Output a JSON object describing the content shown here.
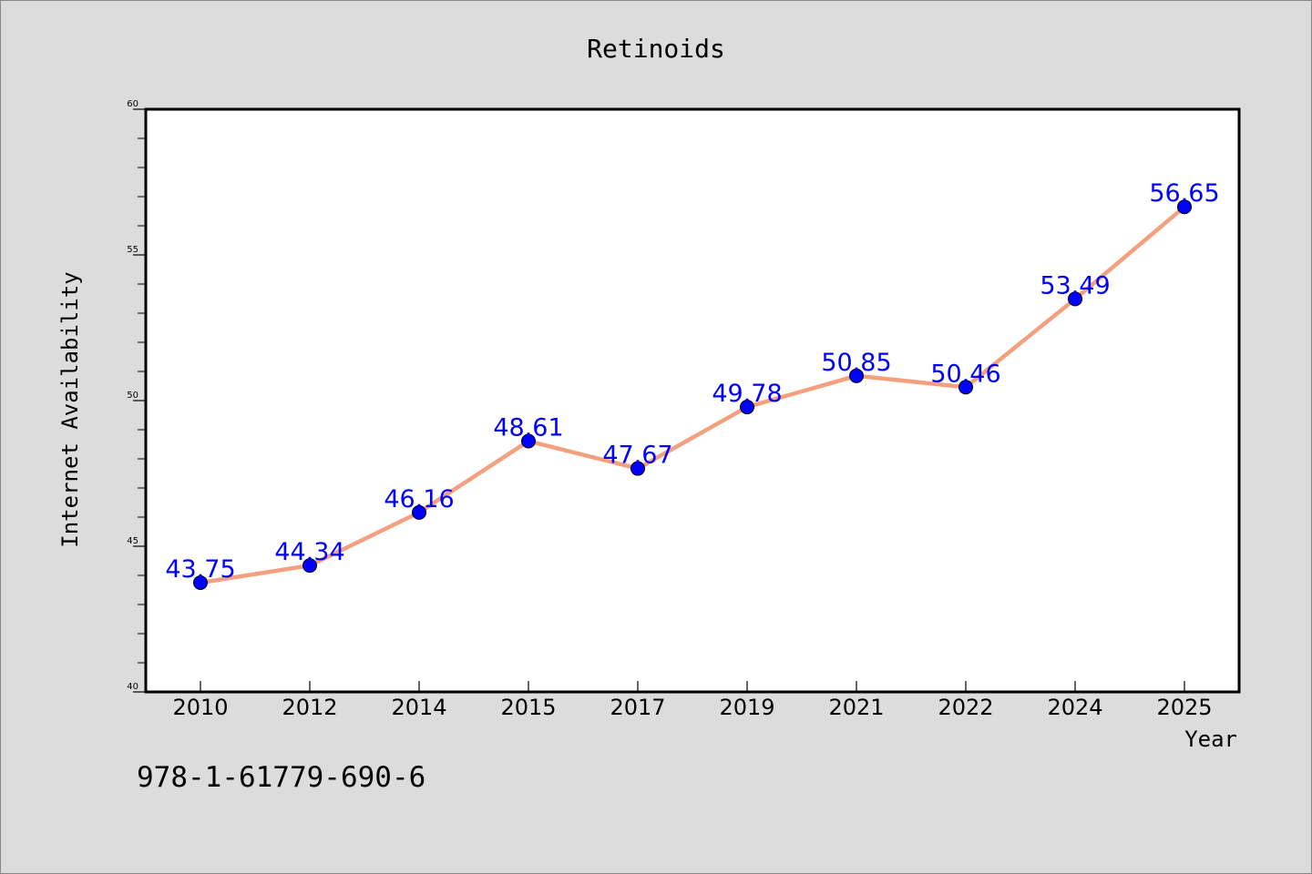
{
  "chart_data": {
    "type": "line",
    "title": "Retinoids",
    "xlabel": "Year",
    "ylabel": "Internet Availability",
    "categories": [
      "2010",
      "2012",
      "2014",
      "2015",
      "2017",
      "2019",
      "2021",
      "2022",
      "2024",
      "2025"
    ],
    "values": [
      43.75,
      44.34,
      46.16,
      48.61,
      47.67,
      49.78,
      50.85,
      50.46,
      53.49,
      56.65
    ],
    "data_labels": [
      "43.75",
      "44.34",
      "46.16",
      "48.61",
      "47.67",
      "49.78",
      "50.85",
      "50.46",
      "53.49",
      "56.65"
    ],
    "ylim": [
      40,
      60
    ],
    "yticks": [
      40,
      45,
      50,
      55,
      60
    ],
    "line_color": "#f4a07e",
    "marker_color": "#0000ff",
    "label_color": "#0000ff",
    "grid": false,
    "legend": "none"
  },
  "footer_text": "978-1-61779-690-6"
}
